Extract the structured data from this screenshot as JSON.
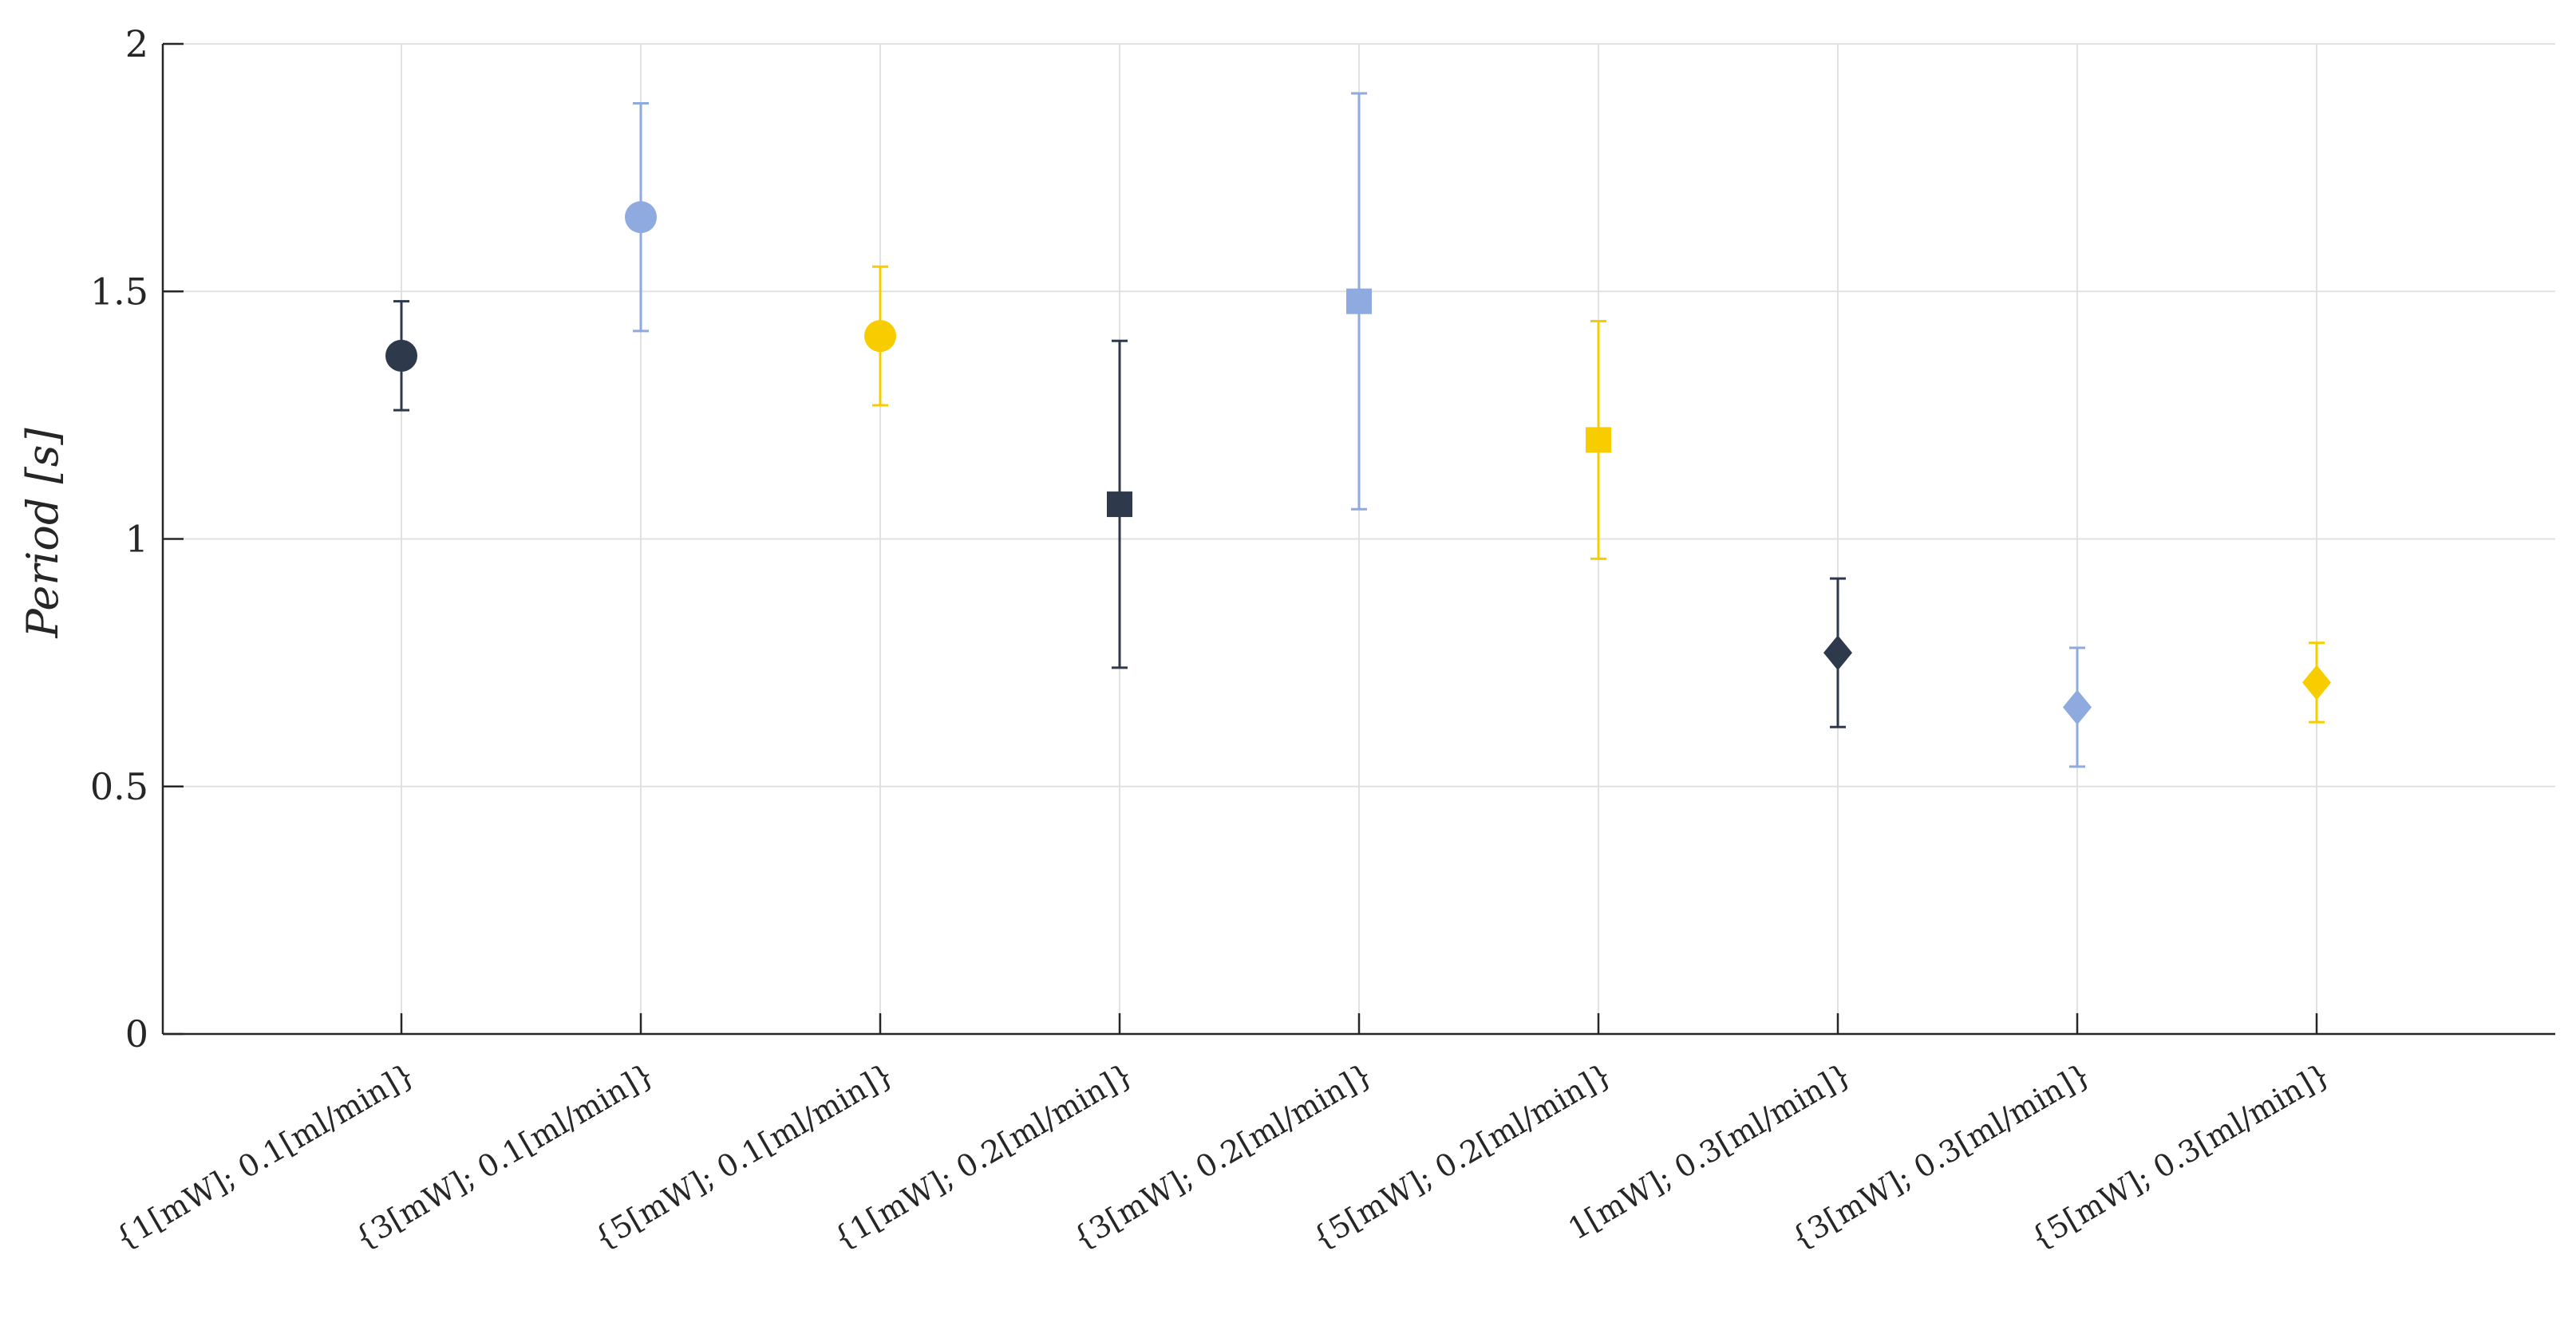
{
  "chart_data": {
    "type": "scatter",
    "title": "",
    "xlabel": "",
    "ylabel": "Period [s]",
    "ylim": [
      0,
      2
    ],
    "yticks": [
      0,
      0.5,
      1,
      1.5,
      2
    ],
    "ytick_labels": [
      "0",
      "0.5",
      "1",
      "1.5",
      "2"
    ],
    "grid": true,
    "categories": [
      "{1[mW]; 0.1[ml/min]}",
      "{3[mW]; 0.1[ml/min]}",
      "{5[mW]; 0.1[ml/min]}",
      "{1[mW]; 0.2[ml/min]}",
      "{3[mW]; 0.2[ml/min]}",
      "{5[mW]; 0.2[ml/min]}",
      "1[mW]; 0.3[ml/min]}",
      "{3[mW]; 0.3[ml/min]}",
      "{5[mW]; 0.3[ml/min]}"
    ],
    "points": [
      {
        "y": 1.37,
        "ylow": 1.26,
        "yhigh": 1.48,
        "marker": "circle",
        "color": "#2e3a4c"
      },
      {
        "y": 1.65,
        "ylow": 1.42,
        "yhigh": 1.88,
        "marker": "circle",
        "color": "#8eaadf"
      },
      {
        "y": 1.41,
        "ylow": 1.27,
        "yhigh": 1.55,
        "marker": "circle",
        "color": "#f8cd00"
      },
      {
        "y": 1.07,
        "ylow": 0.74,
        "yhigh": 1.4,
        "marker": "square",
        "color": "#2e3a4c"
      },
      {
        "y": 1.48,
        "ylow": 1.06,
        "yhigh": 1.9,
        "marker": "square",
        "color": "#8eaadf"
      },
      {
        "y": 1.2,
        "ylow": 0.96,
        "yhigh": 1.44,
        "marker": "square",
        "color": "#f8cd00"
      },
      {
        "y": 0.77,
        "ylow": 0.62,
        "yhigh": 0.92,
        "marker": "diamond",
        "color": "#2e3a4c"
      },
      {
        "y": 0.66,
        "ylow": 0.54,
        "yhigh": 0.78,
        "marker": "diamond",
        "color": "#8eaadf"
      },
      {
        "y": 0.71,
        "ylow": 0.63,
        "yhigh": 0.79,
        "marker": "diamond",
        "color": "#f8cd00"
      }
    ],
    "colors": {
      "axis": "#262626",
      "grid": "#e1e1e1"
    }
  }
}
